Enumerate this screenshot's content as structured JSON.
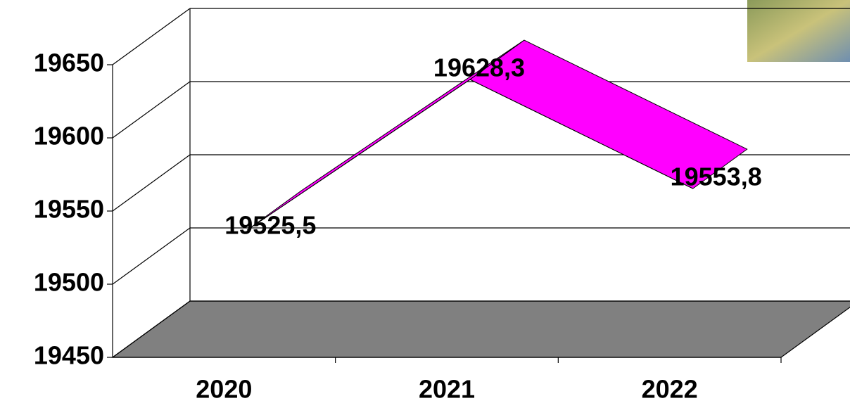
{
  "chart_data": {
    "type": "line3d",
    "categories": [
      "2020",
      "2021",
      "2022"
    ],
    "values": [
      19525.5,
      19628.3,
      19553.8
    ],
    "value_labels": [
      "19525,5",
      "19628,3",
      "19553,8"
    ],
    "color": "#ff00ff",
    "floor_color": "#808080",
    "ylim": [
      19450,
      19650
    ],
    "yticks": [
      19450,
      19500,
      19550,
      19600,
      19650
    ],
    "grid": true
  }
}
